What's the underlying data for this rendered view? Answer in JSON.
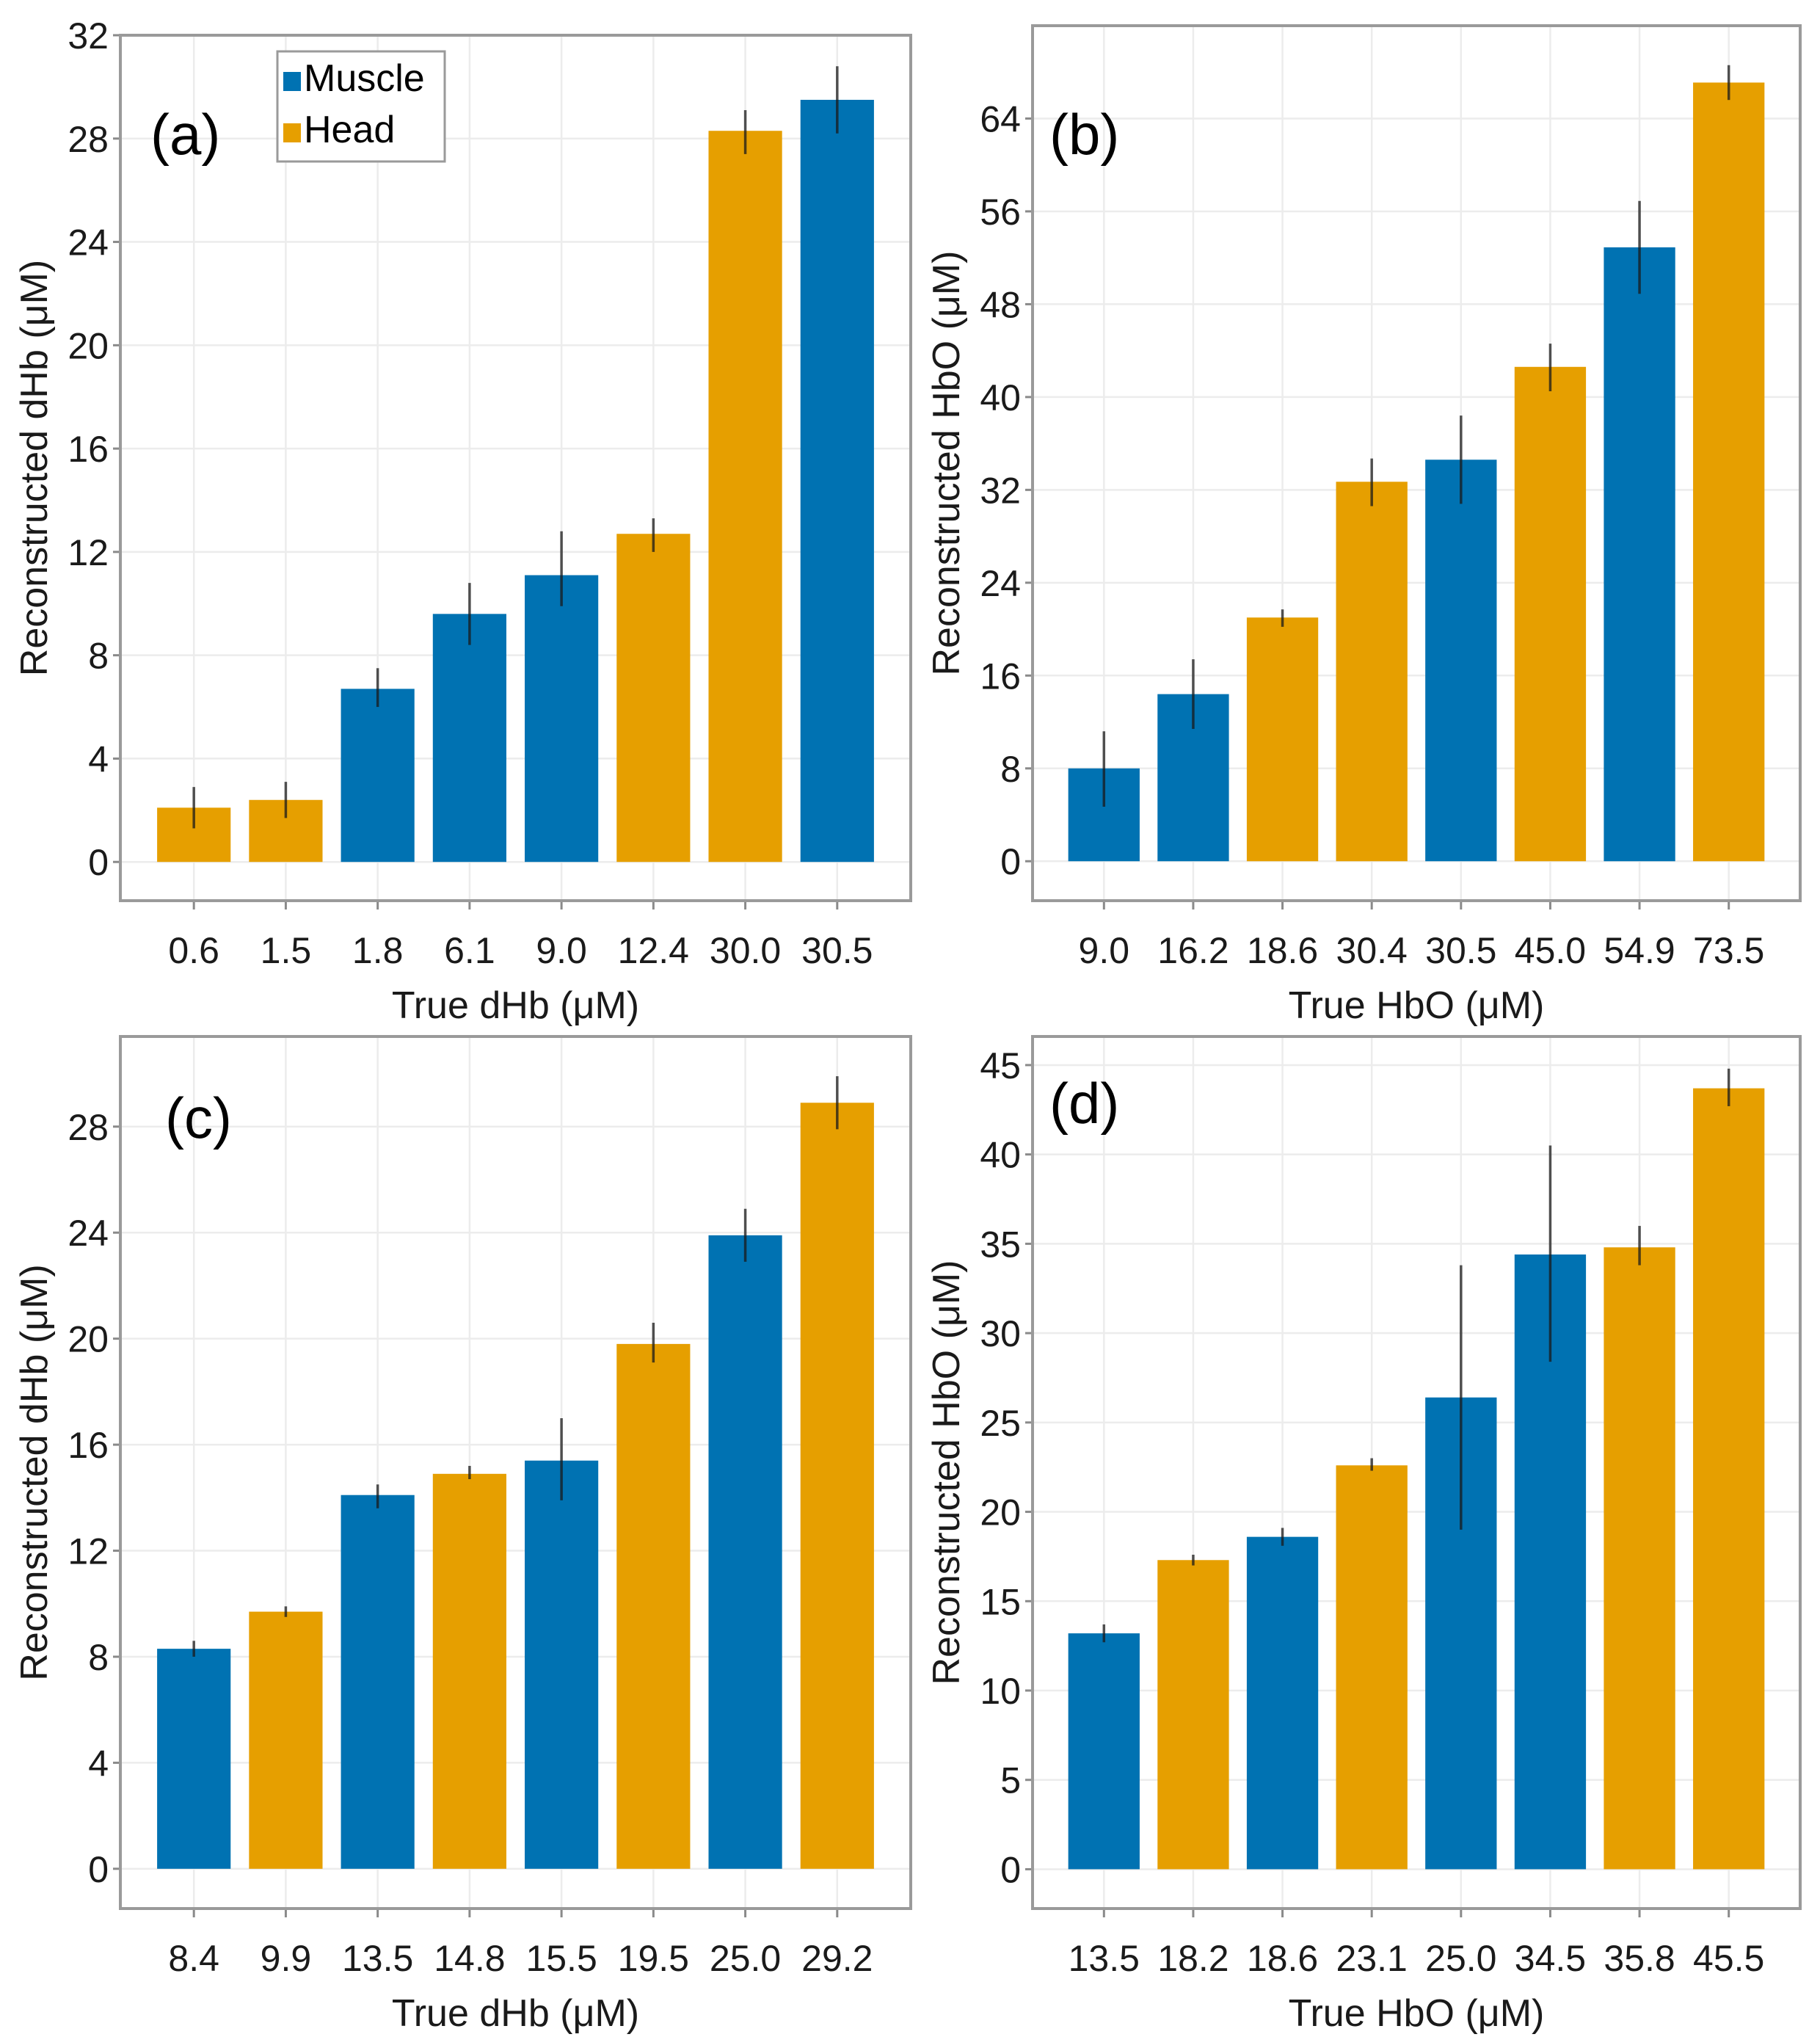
{
  "figure": {
    "colors": {
      "Muscle": "#0072B2",
      "Head": "#E69F00"
    },
    "legend": {
      "placement": "top-left of panel (a)",
      "items": [
        {
          "label": "Muscle",
          "color": "#0072B2"
        },
        {
          "label": "Head",
          "color": "#E69F00"
        }
      ]
    }
  },
  "chart_data": [
    {
      "panel": "(a)",
      "type": "bar",
      "title": "",
      "xlabel": "True dHb (μM)",
      "ylabel": "Reconstructed dHb (μM)",
      "ylim": [
        -1.5,
        32
      ],
      "yticks": [
        0,
        4,
        8,
        12,
        16,
        20,
        24,
        28,
        32
      ],
      "grid": true,
      "categories": [
        "0.6",
        "1.5",
        "1.8",
        "6.1",
        "9.0",
        "12.4",
        "30.0",
        "30.5"
      ],
      "groups": [
        "Head",
        "Head",
        "Muscle",
        "Muscle",
        "Muscle",
        "Head",
        "Head",
        "Muscle"
      ],
      "values": [
        2.1,
        2.4,
        6.7,
        9.6,
        11.1,
        12.7,
        28.3,
        29.5
      ],
      "err_low": [
        1.3,
        1.7,
        6.0,
        8.4,
        9.9,
        12.0,
        27.4,
        28.2
      ],
      "err_high": [
        2.9,
        3.1,
        7.5,
        10.8,
        12.8,
        13.3,
        29.1,
        30.8
      ],
      "legend": true
    },
    {
      "panel": "(b)",
      "type": "bar",
      "title": "",
      "xlabel": "True HbO (μM)",
      "ylabel": "Reconstructed HbO (μM)",
      "ylim": [
        -3.4,
        72
      ],
      "yticks": [
        0,
        8,
        16,
        24,
        32,
        40,
        48,
        56,
        64
      ],
      "grid": true,
      "categories": [
        "9.0",
        "16.2",
        "18.6",
        "30.4",
        "30.5",
        "45.0",
        "54.9",
        "73.5"
      ],
      "groups": [
        "Muscle",
        "Muscle",
        "Head",
        "Head",
        "Muscle",
        "Head",
        "Muscle",
        "Head"
      ],
      "values": [
        8.0,
        14.4,
        21.0,
        32.7,
        34.6,
        42.6,
        52.9,
        67.1
      ],
      "err_low": [
        4.7,
        11.4,
        20.2,
        30.6,
        30.8,
        40.5,
        48.9,
        65.6
      ],
      "err_high": [
        11.2,
        17.4,
        21.7,
        34.7,
        38.4,
        44.6,
        56.9,
        68.6
      ],
      "legend": false
    },
    {
      "panel": "(c)",
      "type": "bar",
      "title": "",
      "xlabel": "True dHb (μM)",
      "ylabel": "Reconstructed dHb (μM)",
      "ylim": [
        -1.5,
        31.4
      ],
      "yticks": [
        0,
        4,
        8,
        12,
        16,
        20,
        24,
        28
      ],
      "grid": true,
      "categories": [
        "8.4",
        "9.9",
        "13.5",
        "14.8",
        "15.5",
        "19.5",
        "25.0",
        "29.2"
      ],
      "groups": [
        "Muscle",
        "Head",
        "Muscle",
        "Head",
        "Muscle",
        "Head",
        "Muscle",
        "Head"
      ],
      "values": [
        8.3,
        9.7,
        14.1,
        14.9,
        15.4,
        19.8,
        23.9,
        28.9
      ],
      "err_low": [
        8.0,
        9.5,
        13.6,
        14.7,
        13.9,
        19.1,
        22.9,
        27.9
      ],
      "err_high": [
        8.6,
        9.9,
        14.5,
        15.2,
        17.0,
        20.6,
        24.9,
        29.9
      ],
      "legend": false
    },
    {
      "panel": "(d)",
      "type": "bar",
      "title": "",
      "xlabel": "True HbO (μM)",
      "ylabel": "Reconstructed HbO (μM)",
      "ylim": [
        -2.2,
        46.6
      ],
      "yticks": [
        0,
        5,
        10,
        15,
        20,
        25,
        30,
        35,
        40,
        45
      ],
      "grid": true,
      "categories": [
        "13.5",
        "18.2",
        "18.6",
        "23.1",
        "25.0",
        "34.5",
        "35.8",
        "45.5"
      ],
      "groups": [
        "Muscle",
        "Head",
        "Muscle",
        "Head",
        "Muscle",
        "Muscle",
        "Head",
        "Head"
      ],
      "values": [
        13.2,
        17.3,
        18.6,
        22.6,
        26.4,
        34.4,
        34.8,
        43.7
      ],
      "err_low": [
        12.7,
        17.0,
        18.1,
        22.3,
        19.0,
        28.4,
        33.8,
        42.7
      ],
      "err_high": [
        13.7,
        17.6,
        19.1,
        23.0,
        33.8,
        40.5,
        36.0,
        44.8
      ],
      "legend": false
    }
  ]
}
